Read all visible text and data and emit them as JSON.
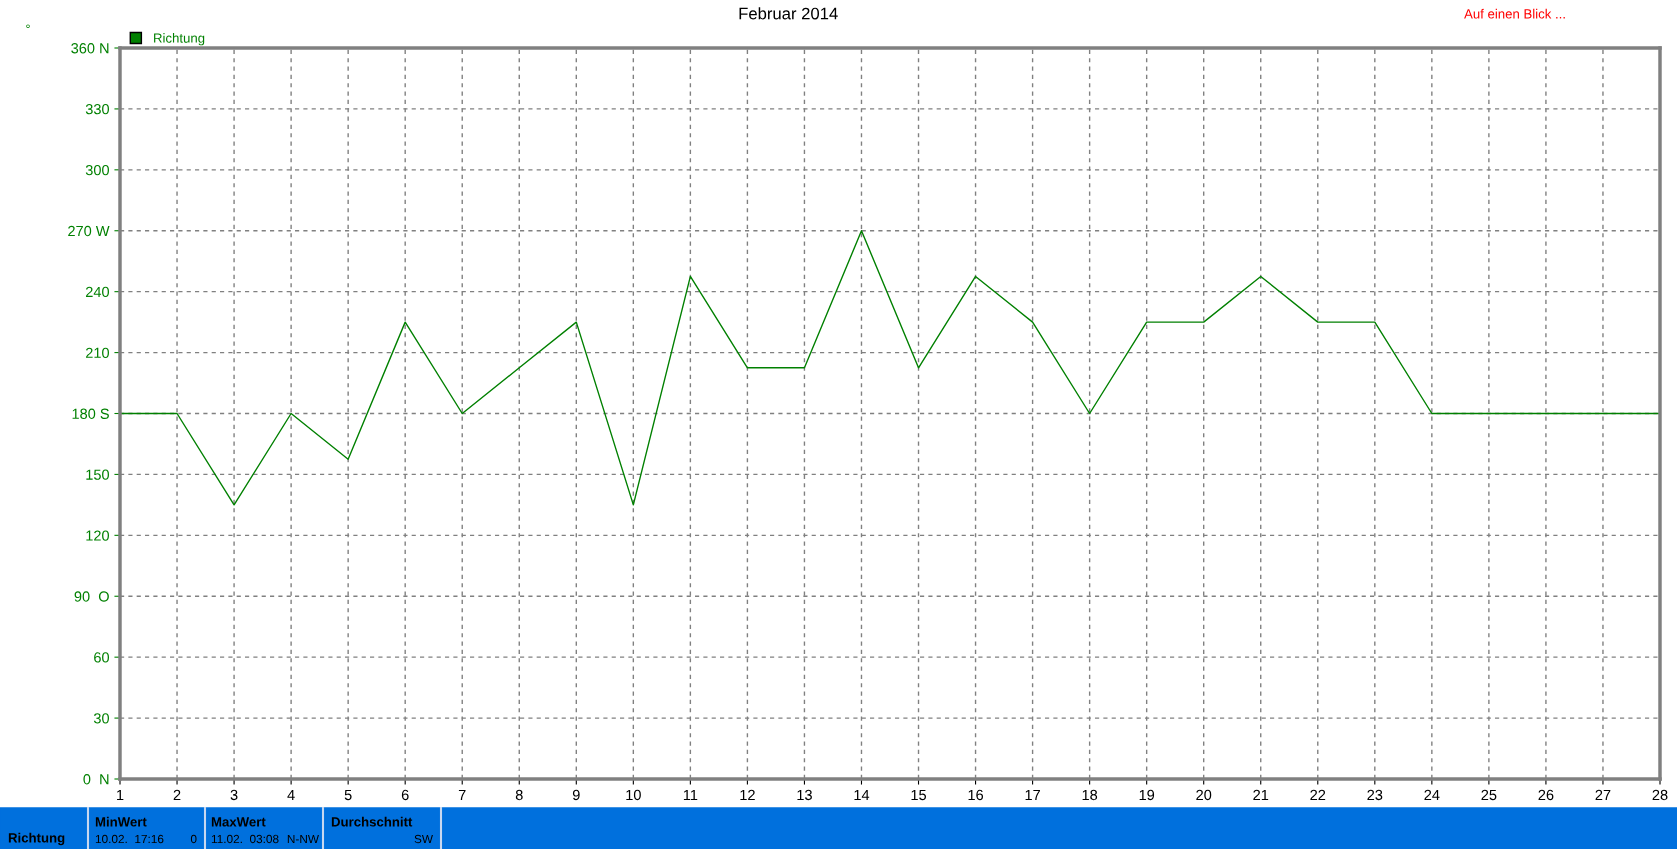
{
  "chart_data": {
    "type": "line",
    "title": "Februar 2014",
    "ylabel": "°",
    "x": [
      1,
      2,
      3,
      4,
      5,
      6,
      7,
      8,
      9,
      10,
      11,
      12,
      13,
      14,
      15,
      16,
      17,
      18,
      19,
      20,
      21,
      22,
      23,
      24,
      25,
      26,
      27,
      28
    ],
    "series": [
      {
        "name": "Richtung",
        "color": "#008000",
        "values": [
          180,
          180,
          135,
          180,
          157.5,
          225,
          180,
          202.5,
          225,
          135,
          247.5,
          202.5,
          202.5,
          270,
          202.5,
          247.5,
          225,
          180,
          225,
          225,
          247.5,
          225,
          225,
          180,
          180,
          180,
          180,
          180
        ]
      }
    ],
    "xlim": [
      1,
      28
    ],
    "xticks": [
      1,
      2,
      3,
      4,
      5,
      6,
      7,
      8,
      9,
      10,
      11,
      12,
      13,
      14,
      15,
      16,
      17,
      18,
      19,
      20,
      21,
      22,
      23,
      24,
      25,
      26,
      27,
      28
    ],
    "ylim": [
      0,
      360
    ],
    "yticks": [
      {
        "value": 0,
        "label": "0  N"
      },
      30,
      60,
      {
        "value": 90,
        "label": "90  O"
      },
      120,
      150,
      {
        "value": 180,
        "label": "180 S"
      },
      210,
      240,
      {
        "value": 270,
        "label": "270 W"
      },
      300,
      330,
      {
        "value": 360,
        "label": "360 N"
      }
    ],
    "grid": true,
    "legend": "top left",
    "line_style": "solid",
    "marker": "none",
    "annotations": [
      "Auf einen Blick ...",
      "Richtung",
      "MinWert",
      "10.02.  17:16",
      "0",
      "MaxWert",
      "11.02.  03:08",
      "N-NW",
      "Durchschnitt",
      "SW"
    ]
  }
}
